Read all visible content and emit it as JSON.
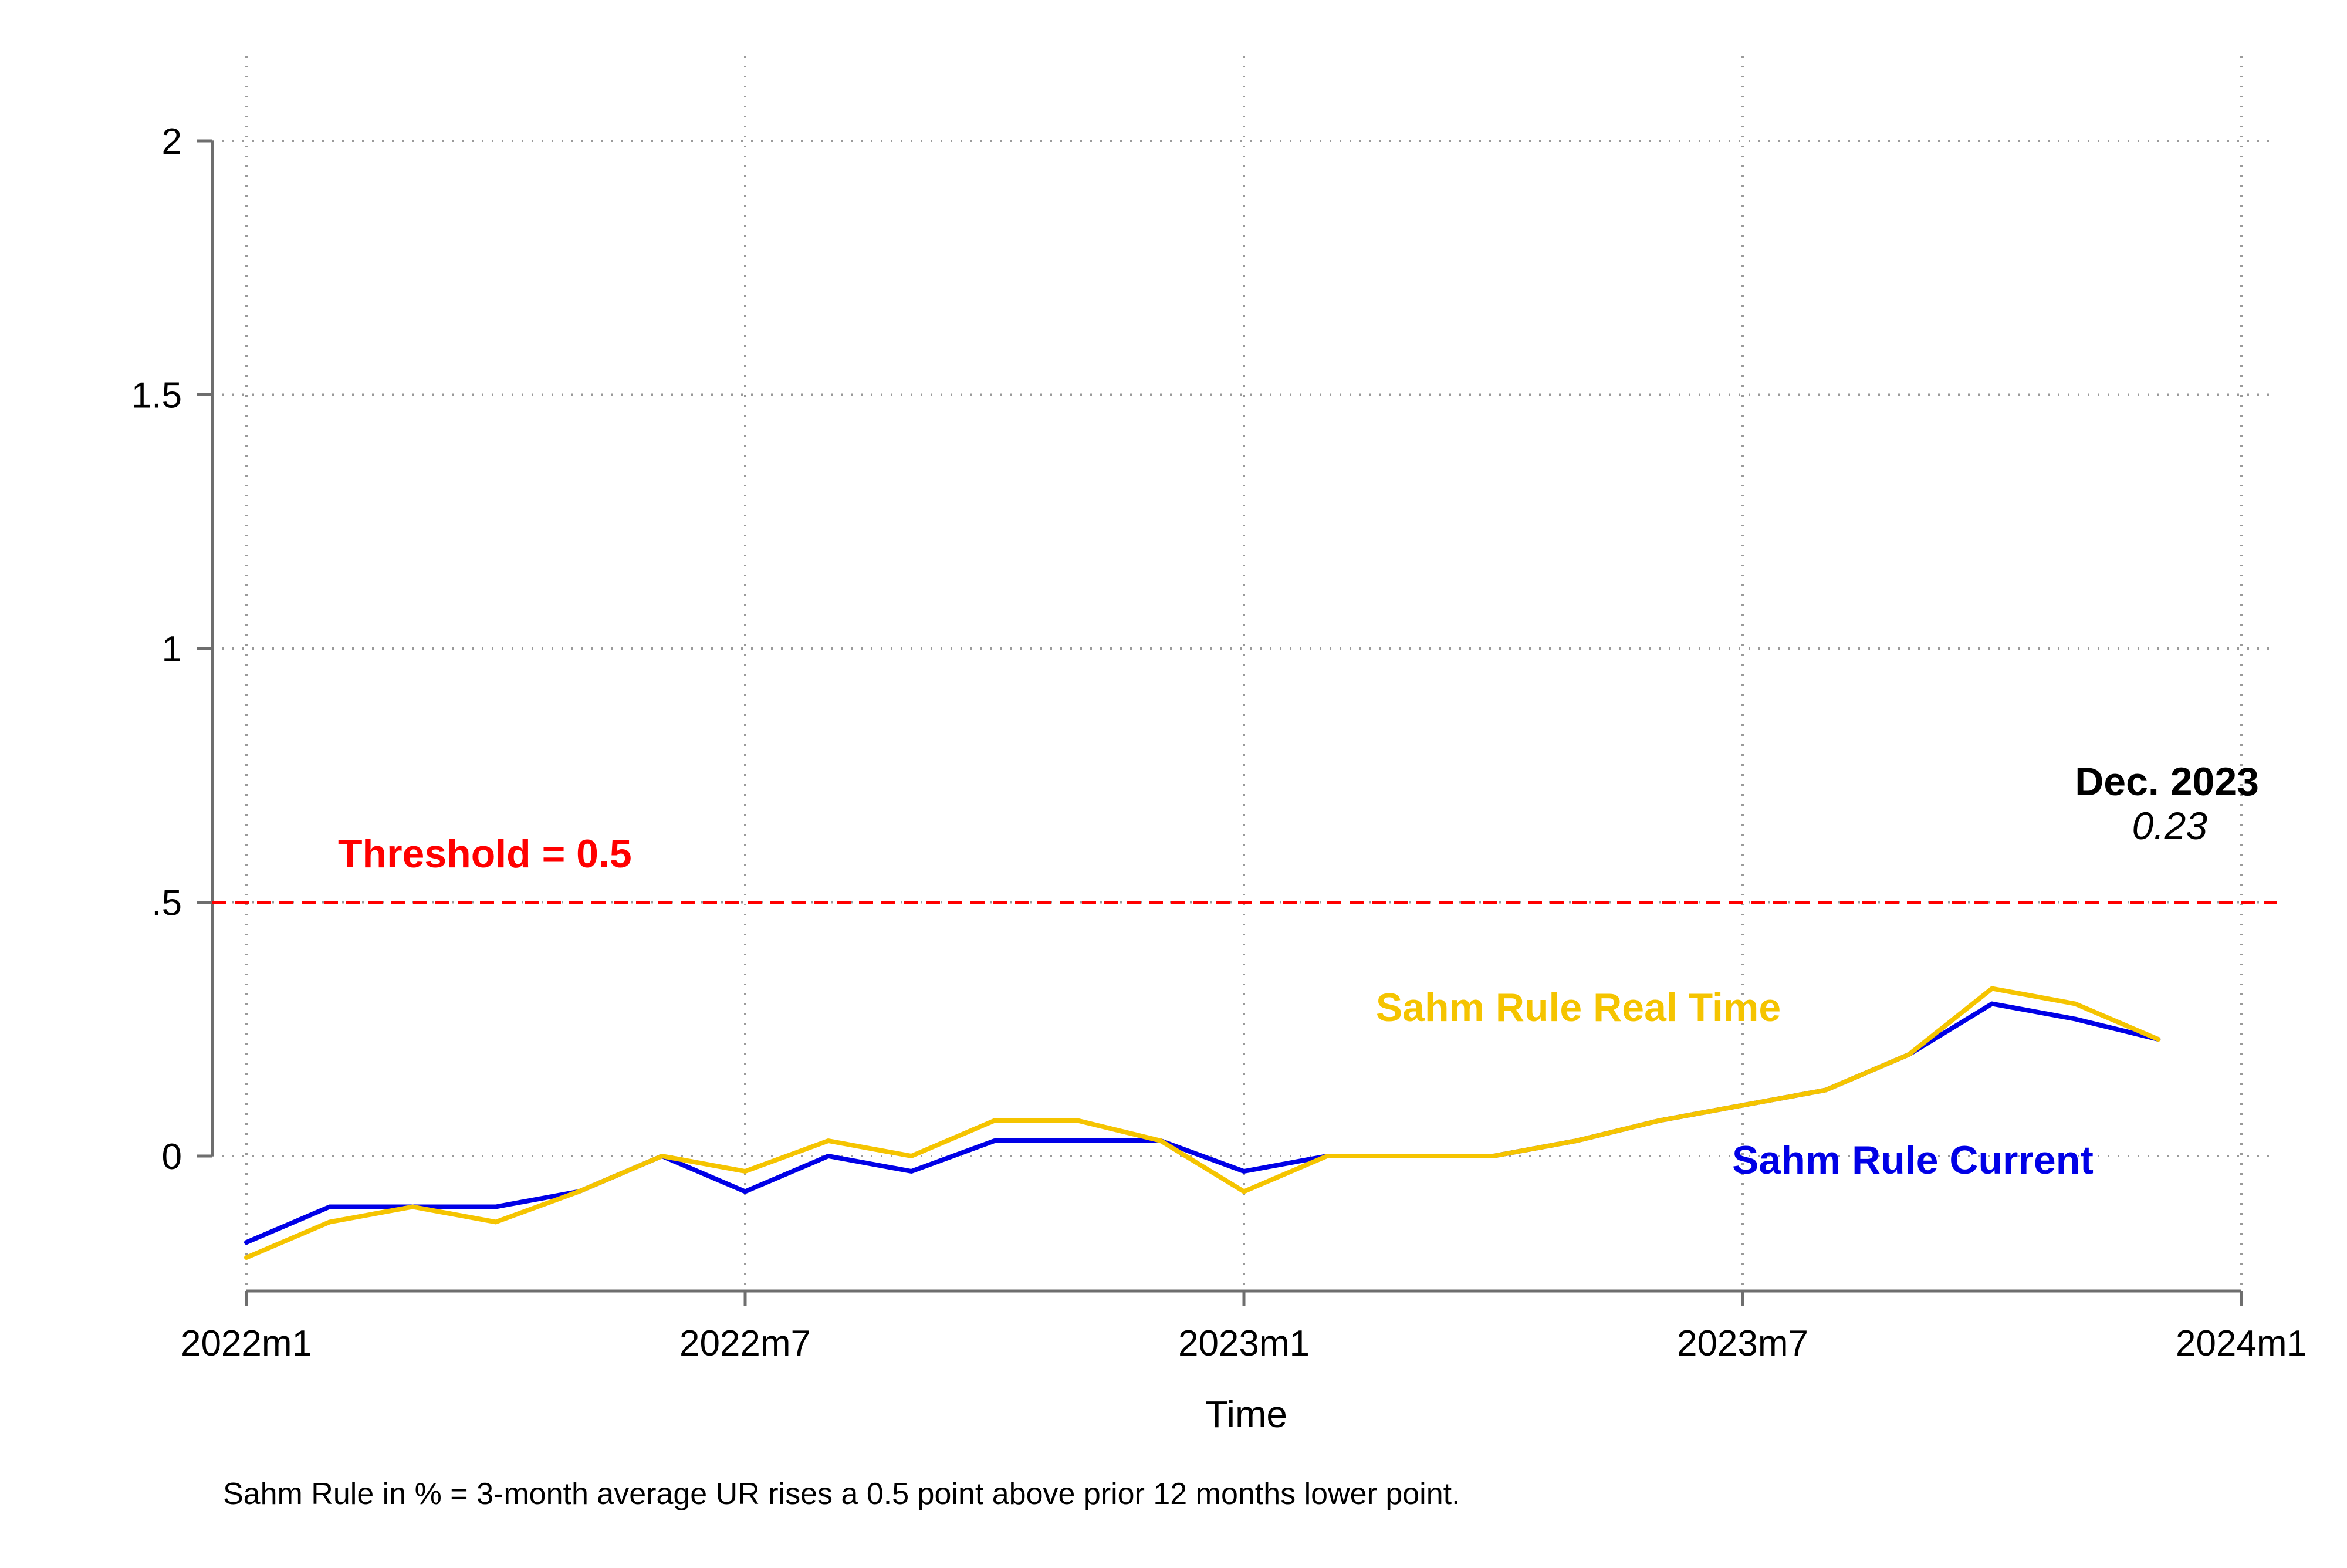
{
  "chart_data": {
    "type": "line",
    "x": [
      "2022m1",
      "2022m2",
      "2022m3",
      "2022m4",
      "2022m5",
      "2022m6",
      "2022m7",
      "2022m8",
      "2022m9",
      "2022m10",
      "2022m11",
      "2022m12",
      "2023m1",
      "2023m2",
      "2023m3",
      "2023m4",
      "2023m5",
      "2023m6",
      "2023m7",
      "2023m8",
      "2023m9",
      "2023m10",
      "2023m11",
      "2023m12"
    ],
    "series": [
      {
        "name": "Sahm Rule Real Time",
        "color": "#F5C400",
        "values": [
          -0.2,
          -0.13,
          -0.1,
          -0.13,
          -0.07,
          0.0,
          -0.03,
          0.03,
          0.0,
          0.07,
          0.07,
          0.03,
          -0.07,
          0.0,
          0.0,
          0.0,
          0.03,
          0.07,
          0.1,
          0.13,
          0.2,
          0.33,
          0.3,
          0.23
        ]
      },
      {
        "name": "Sahm Rule Current",
        "color": "#0000E6",
        "values": [
          -0.17,
          -0.1,
          -0.1,
          -0.1,
          -0.07,
          0.0,
          -0.07,
          0.0,
          -0.03,
          0.03,
          0.03,
          0.03,
          -0.03,
          0.0,
          0.0,
          0.0,
          0.03,
          0.07,
          0.1,
          0.13,
          0.2,
          0.3,
          0.27,
          0.23
        ]
      }
    ],
    "xticks": [
      "2022m1",
      "2022m7",
      "2023m1",
      "2023m7",
      "2024m1"
    ],
    "yticks": [
      {
        "value": 0,
        "label": "0"
      },
      {
        "value": 0.5,
        "label": ".5"
      },
      {
        "value": 1,
        "label": "1"
      },
      {
        "value": 1.5,
        "label": "1.5"
      },
      {
        "value": 2,
        "label": "2"
      }
    ],
    "xlim": [
      "2022m1",
      "2024m1"
    ],
    "ylim": [
      -0.26,
      2.18
    ],
    "xlabel": "Time",
    "ylabel": "",
    "grid": true,
    "threshold": {
      "value": 0.5,
      "label": "Threshold = 0.5",
      "color": "#FF0000"
    },
    "callout": {
      "title": "Dec. 2023",
      "value": "0.23"
    },
    "note": "Sahm Rule in % = 3-month average UR rises a 0.5 point above prior 12 months lower point."
  }
}
